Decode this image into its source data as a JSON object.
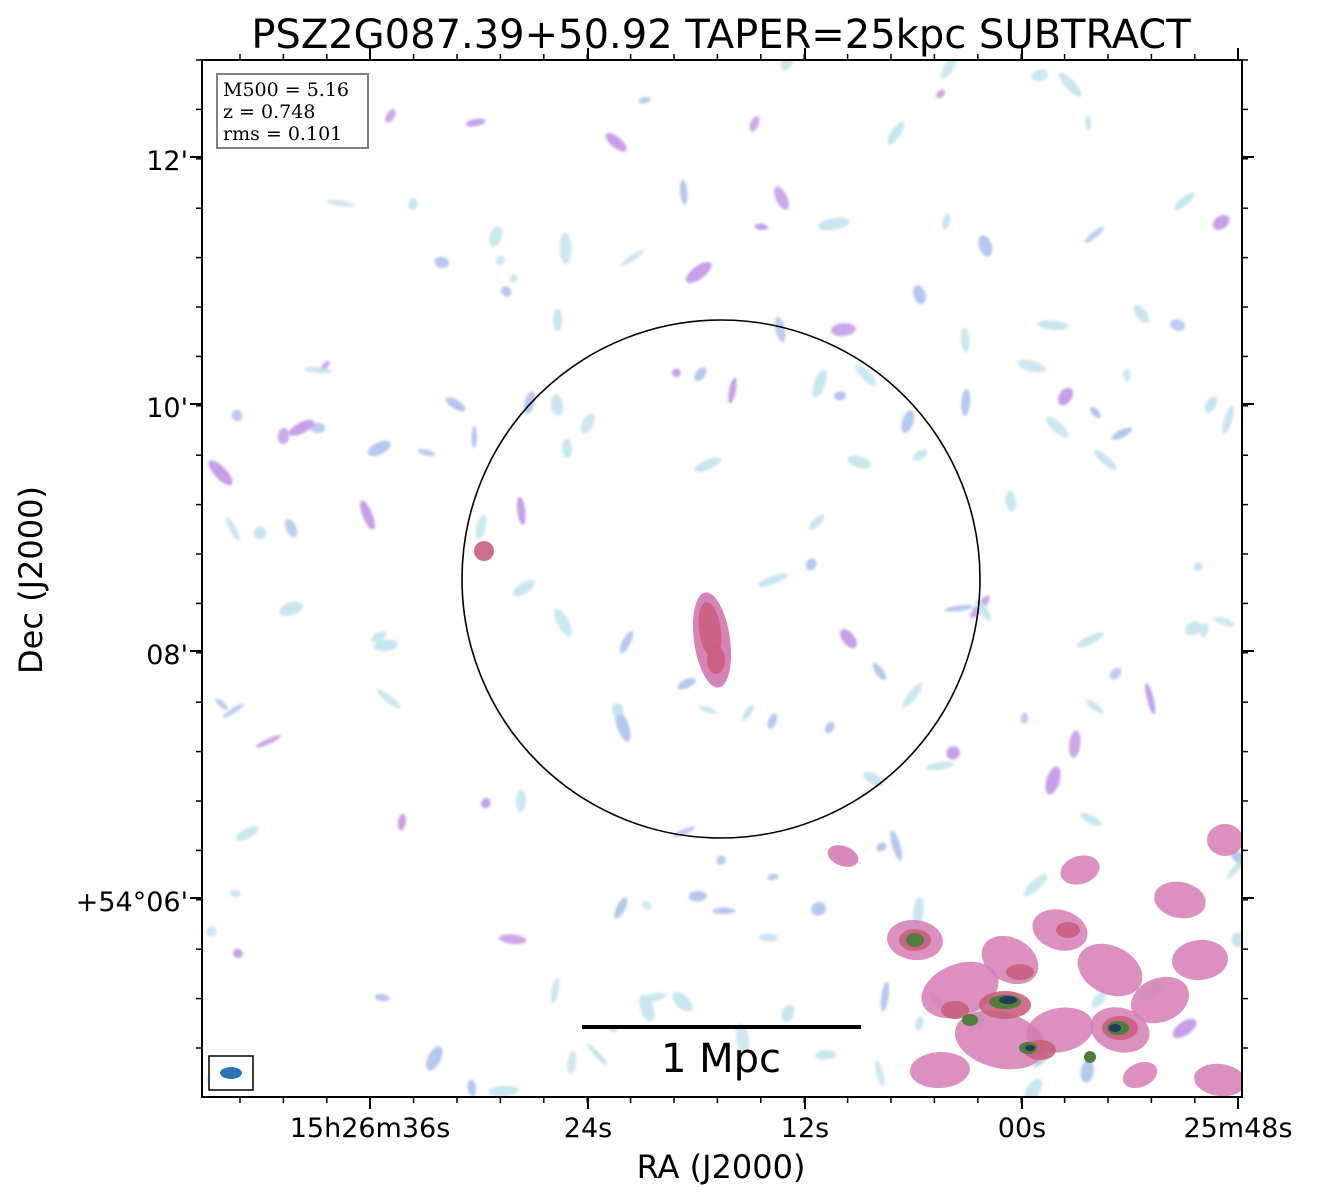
{
  "figure": {
    "title": "PSZ2G087.39+50.92 TAPER=25kpc SUBTRACT",
    "x_axis_label": "RA (J2000)",
    "y_axis_label": "Dec (J2000)",
    "x_tick_labels": [
      "15h26m36s",
      "24s",
      "12s",
      "00s",
      "25m48s"
    ],
    "y_tick_labels": [
      "12'",
      "10'",
      "08'",
      "+54°06'"
    ],
    "info_box": {
      "mass": "M500 = 5.16",
      "redshift": "z = 0.748",
      "rms": "rms = 0.101"
    },
    "scale_bar_label": "1 Mpc",
    "colors": {
      "noise_light": "#c6e6ee",
      "noise_blue": "#b4c8f0",
      "noise_purple": "#c79ee8",
      "emission_pink": "#d57cb4",
      "emission_red": "#c9607e",
      "emission_green": "#4f7d3a",
      "emission_dark": "#1f3d5a",
      "beam": "#2b74b4"
    }
  }
}
